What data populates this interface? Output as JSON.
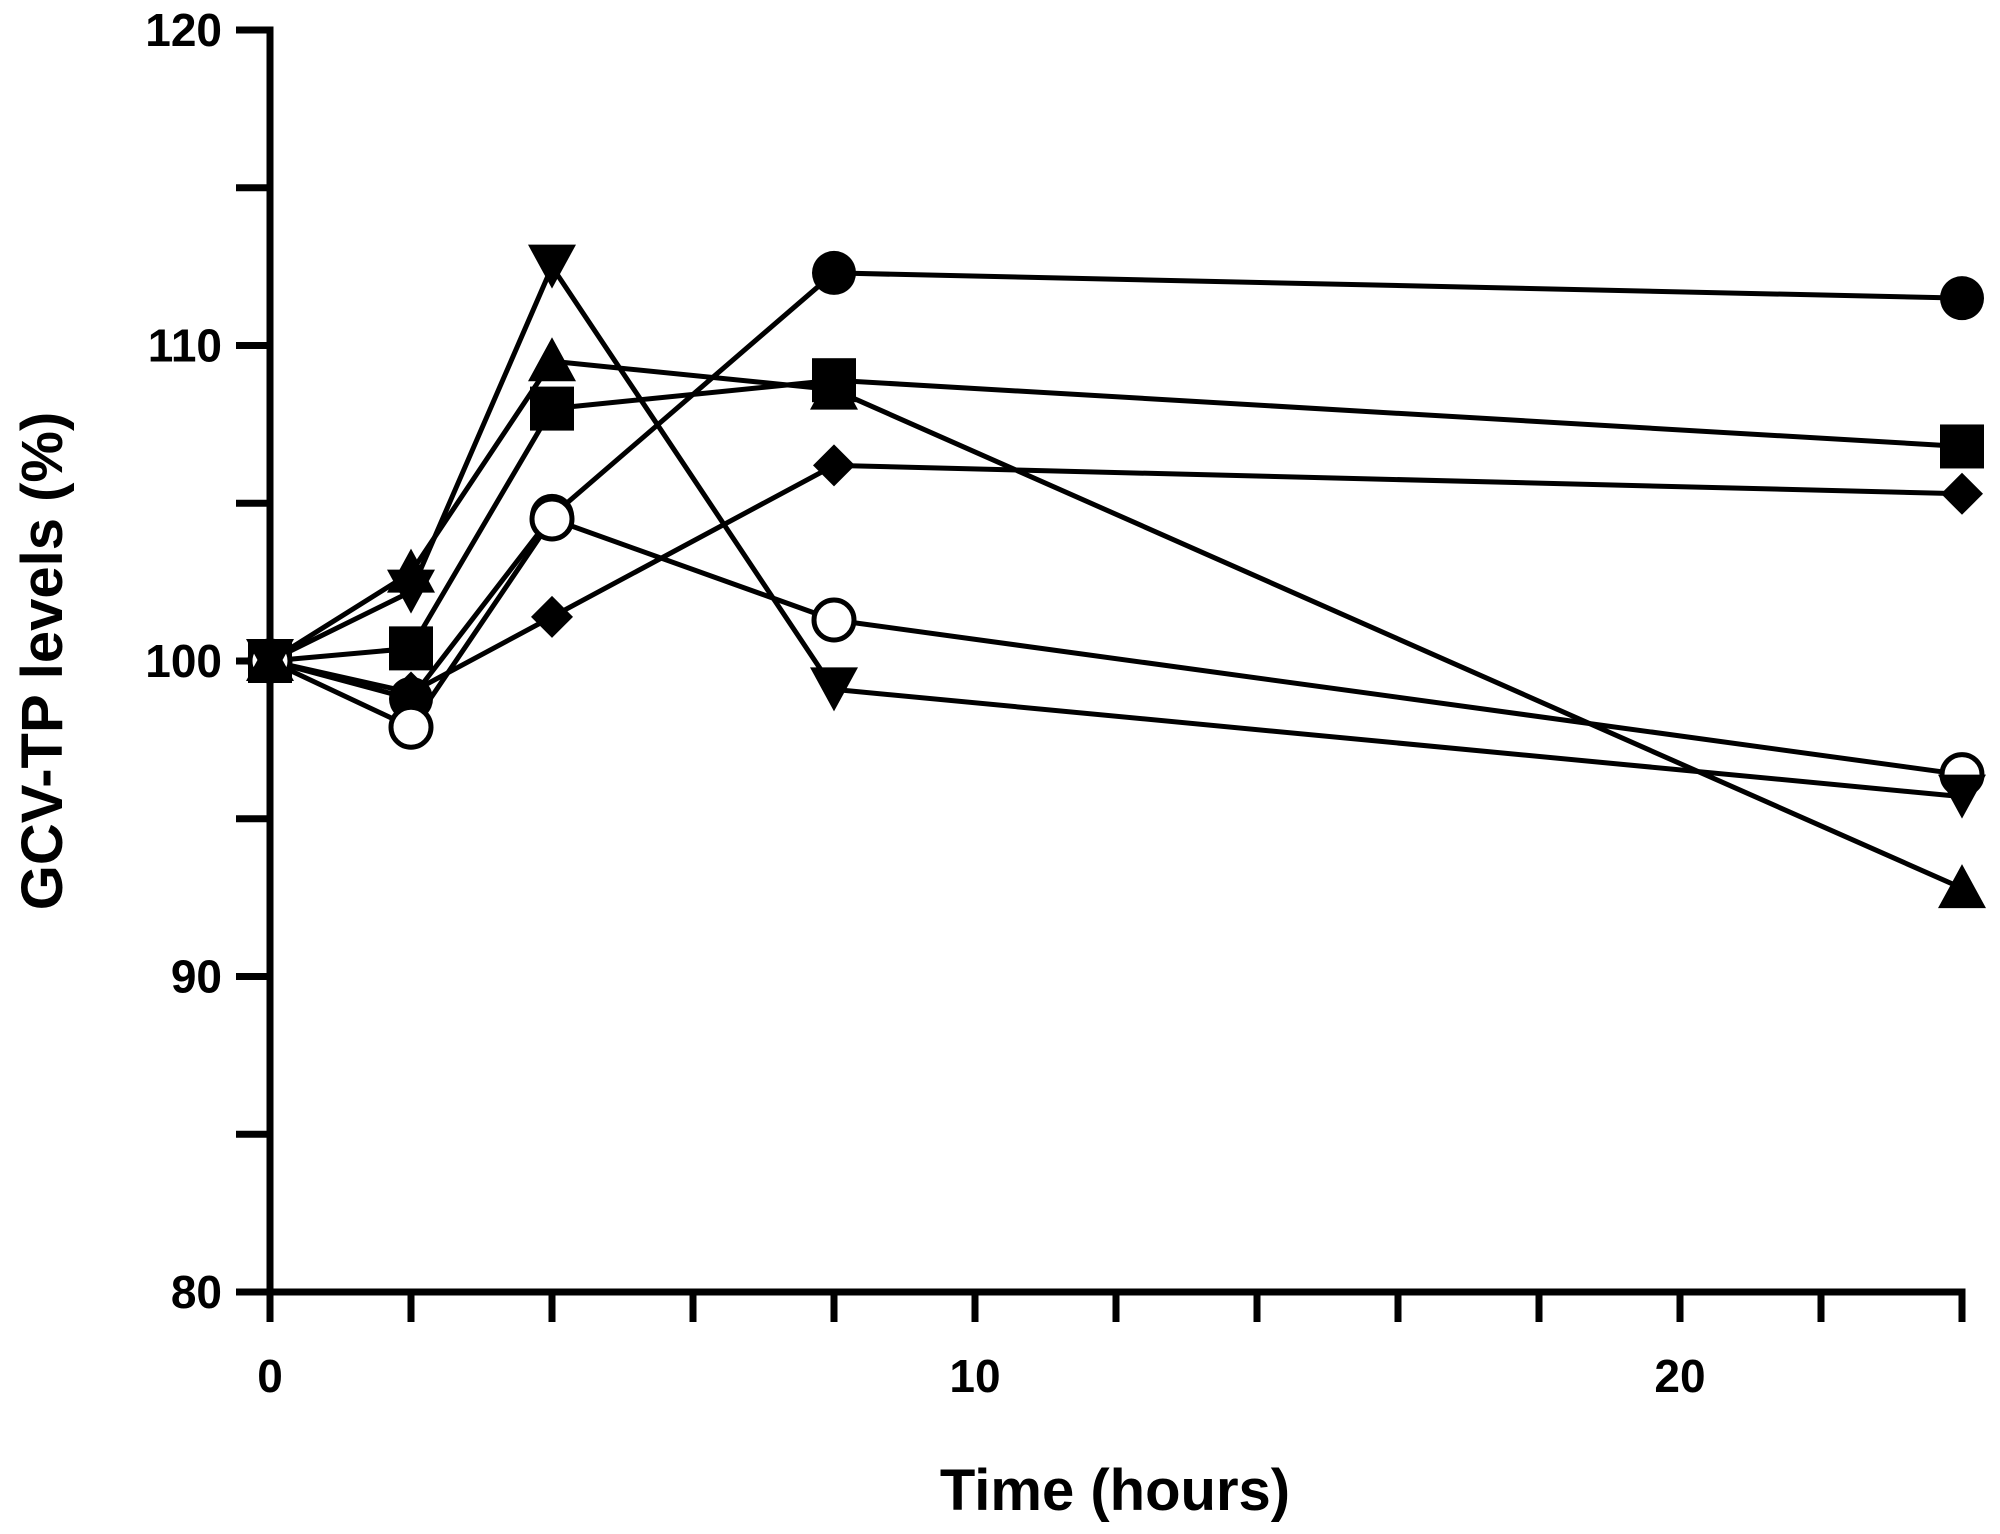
{
  "chart_data": {
    "type": "line",
    "title": "",
    "xlabel": "Time (hours)",
    "ylabel": "GCV-TP levels (%)",
    "xlim": [
      0,
      24
    ],
    "ylim": [
      80,
      120
    ],
    "x_major_ticks": [
      0,
      10,
      20
    ],
    "x_minor_ticks": [
      2,
      4,
      6,
      8,
      12,
      14,
      16,
      18,
      22,
      24
    ],
    "y_major_ticks": [
      80,
      90,
      100,
      110,
      120
    ],
    "y_minor_ticks": [
      85,
      95,
      105,
      115
    ],
    "grid": false,
    "legend": "none",
    "series": [
      {
        "marker": "circle-filled",
        "x": [
          0,
          2,
          4,
          8,
          24
        ],
        "y": [
          100,
          98.8,
          104.6,
          112.3,
          111.5
        ]
      },
      {
        "marker": "square",
        "x": [
          0,
          2,
          4,
          8,
          24
        ],
        "y": [
          100,
          100.4,
          108,
          108.9,
          106.8
        ]
      },
      {
        "marker": "diamond",
        "x": [
          0,
          2,
          4,
          8,
          24
        ],
        "y": [
          100,
          99,
          101.4,
          106.2,
          105.3
        ]
      },
      {
        "marker": "circle-open",
        "x": [
          0,
          2,
          4,
          8,
          24
        ],
        "y": [
          100,
          97.9,
          104.5,
          101.3,
          96.4
        ]
      },
      {
        "marker": "triangle-down",
        "x": [
          0,
          2,
          4,
          8,
          24
        ],
        "y": [
          100,
          102.2,
          112.5,
          99.1,
          95.7
        ]
      },
      {
        "marker": "triangle-up",
        "x": [
          0,
          2,
          4,
          8,
          24
        ],
        "y": [
          100,
          102.8,
          109.5,
          108.6,
          92.8
        ]
      }
    ]
  }
}
